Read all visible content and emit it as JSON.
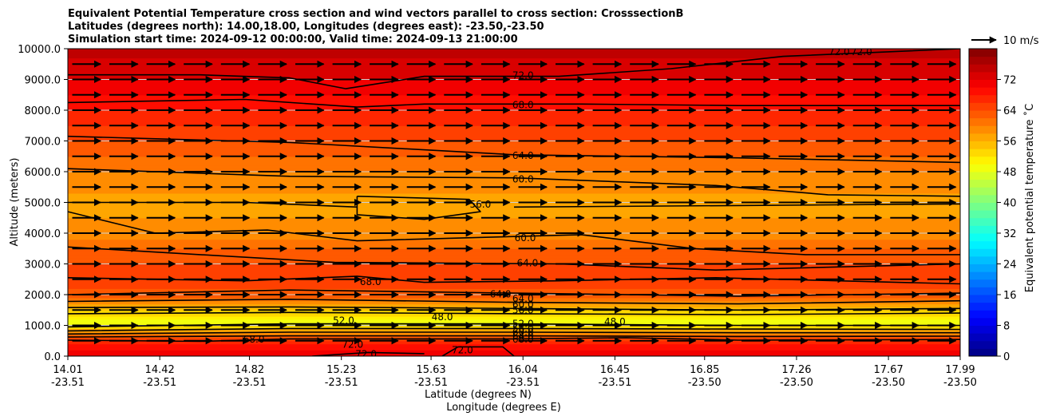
{
  "chart_data": {
    "type": "heatmap",
    "subtype": "filled contour cross section with quiver vectors",
    "title_lines": [
      "Equivalent Potential Temperature cross section and wind vectors parallel to cross section: CrosssectionB",
      "Latitudes (degrees north): 14.00,18.00, Longitudes (degrees east): -23.50,-23.50",
      "Simulation start time: 2024-09-12 00:00:00, Valid time: 2024-09-13 21:00:00"
    ],
    "xlabel_lat": "Latitude (degrees N)",
    "xlabel_lon": "Longitude (degrees E)",
    "ylabel": "Altitude (meters)",
    "colorbar_label": "Equivalent potential temperature ˚C",
    "xlim": [
      14.01,
      17.99
    ],
    "ylim": [
      0,
      10000
    ],
    "x_ticks": [
      {
        "value": 14.01,
        "lat": "14.01",
        "lon": "-23.51"
      },
      {
        "value": 14.42,
        "lat": "14.42",
        "lon": "-23.51"
      },
      {
        "value": 14.82,
        "lat": "14.82",
        "lon": "-23.51"
      },
      {
        "value": 15.23,
        "lat": "15.23",
        "lon": "-23.51"
      },
      {
        "value": 15.63,
        "lat": "15.63",
        "lon": "-23.51"
      },
      {
        "value": 16.04,
        "lat": "16.04",
        "lon": "-23.51"
      },
      {
        "value": 16.45,
        "lat": "16.45",
        "lon": "-23.51"
      },
      {
        "value": 16.85,
        "lat": "16.85",
        "lon": "-23.50"
      },
      {
        "value": 17.26,
        "lat": "17.26",
        "lon": "-23.50"
      },
      {
        "value": 17.67,
        "lat": "17.67",
        "lon": "-23.50"
      },
      {
        "value": 17.99,
        "lat": "17.99",
        "lon": "-23.50"
      }
    ],
    "y_ticks": [
      {
        "value": 0,
        "label": "0.0"
      },
      {
        "value": 1000,
        "label": "1000.0"
      },
      {
        "value": 2000,
        "label": "2000.0"
      },
      {
        "value": 3000,
        "label": "3000.0"
      },
      {
        "value": 4000,
        "label": "4000.0"
      },
      {
        "value": 5000,
        "label": "5000.0"
      },
      {
        "value": 6000,
        "label": "6000.0"
      },
      {
        "value": 7000,
        "label": "7000.0"
      },
      {
        "value": 8000,
        "label": "8000.0"
      },
      {
        "value": 9000,
        "label": "9000.0"
      },
      {
        "value": 10000,
        "label": "10000.0"
      }
    ],
    "colorbar": {
      "range": [
        0,
        80
      ],
      "tick_values": [
        0,
        8,
        16,
        24,
        32,
        40,
        48,
        56,
        64,
        72
      ],
      "tick_labels": [
        "0",
        "8",
        "16",
        "24",
        "32",
        "40",
        "48",
        "56",
        "64",
        "72"
      ]
    },
    "quiver_key": {
      "label": "10 m/s",
      "speed": 10
    },
    "theta_e_profile": [
      {
        "z": 0,
        "value": 71
      },
      {
        "z": 400,
        "value": 69
      },
      {
        "z": 800,
        "value": 58
      },
      {
        "z": 1000,
        "value": 50
      },
      {
        "z": 1200,
        "value": 49
      },
      {
        "z": 1400,
        "value": 53
      },
      {
        "z": 1700,
        "value": 58
      },
      {
        "z": 2000,
        "value": 63
      },
      {
        "z": 2500,
        "value": 66
      },
      {
        "z": 3000,
        "value": 64
      },
      {
        "z": 3500,
        "value": 62
      },
      {
        "z": 4000,
        "value": 59
      },
      {
        "z": 5000,
        "value": 57
      },
      {
        "z": 6000,
        "value": 60
      },
      {
        "z": 7000,
        "value": 64
      },
      {
        "z": 8000,
        "value": 68
      },
      {
        "z": 9000,
        "value": 72
      },
      {
        "z": 10000,
        "value": 75
      }
    ],
    "contour_labels": [
      {
        "text": "72.0",
        "x": 16.04,
        "z": 9130
      },
      {
        "text": "68.0",
        "x": 16.04,
        "z": 8170
      },
      {
        "text": "64.0",
        "x": 16.04,
        "z": 6520
      },
      {
        "text": "60.0",
        "x": 16.04,
        "z": 5750
      },
      {
        "text": "56.0",
        "x": 15.85,
        "z": 4930
      },
      {
        "text": "60.0",
        "x": 16.05,
        "z": 3850
      },
      {
        "text": "64.0",
        "x": 16.06,
        "z": 3030
      },
      {
        "text": "68.0",
        "x": 15.36,
        "z": 2420
      },
      {
        "text": "64.0",
        "x": 15.94,
        "z": 2010
      },
      {
        "text": "64.0",
        "x": 16.04,
        "z": 1870
      },
      {
        "text": "60.0",
        "x": 16.04,
        "z": 1680
      },
      {
        "text": "56.0",
        "x": 16.04,
        "z": 1500
      },
      {
        "text": "52.0",
        "x": 15.24,
        "z": 1150
      },
      {
        "text": "48.0",
        "x": 15.68,
        "z": 1270
      },
      {
        "text": "48.0",
        "x": 16.45,
        "z": 1120
      },
      {
        "text": "52.0",
        "x": 16.04,
        "z": 1050
      },
      {
        "text": "56.0",
        "x": 16.04,
        "z": 900
      },
      {
        "text": "60.0",
        "x": 16.04,
        "z": 780
      },
      {
        "text": "64.0",
        "x": 16.04,
        "z": 650
      },
      {
        "text": "68.0",
        "x": 16.04,
        "z": 550
      },
      {
        "text": "68.0",
        "x": 14.84,
        "z": 550
      },
      {
        "text": "72.0",
        "x": 15.28,
        "z": 380
      },
      {
        "text": "72.0",
        "x": 15.34,
        "z": 60
      },
      {
        "text": "72.0",
        "x": 15.77,
        "z": 200
      },
      {
        "text": "72.0",
        "x": 17.45,
        "z": 9900
      },
      {
        "text": "72.0",
        "x": 17.55,
        "z": 9900
      }
    ],
    "contour_lines": [
      {
        "level": 72,
        "points": [
          [
            14.01,
            9150
          ],
          [
            14.6,
            9150
          ],
          [
            15.0,
            9050
          ],
          [
            15.25,
            8700
          ],
          [
            15.6,
            9100
          ],
          [
            16.2,
            9100
          ],
          [
            16.7,
            9350
          ],
          [
            17.2,
            9750
          ],
          [
            17.99,
            10000
          ]
        ]
      },
      {
        "level": 68,
        "points": [
          [
            14.01,
            8250
          ],
          [
            14.8,
            8350
          ],
          [
            15.3,
            8100
          ],
          [
            15.6,
            8200
          ],
          [
            16.3,
            8200
          ],
          [
            17.0,
            8150
          ],
          [
            17.99,
            8150
          ]
        ]
      },
      {
        "level": 64,
        "points": [
          [
            14.01,
            7150
          ],
          [
            15.0,
            6950
          ],
          [
            16.0,
            6550
          ],
          [
            17.0,
            6450
          ],
          [
            17.99,
            6300
          ]
        ]
      },
      {
        "level": 60,
        "points": [
          [
            14.01,
            6100
          ],
          [
            15.0,
            5850
          ],
          [
            16.0,
            5800
          ],
          [
            16.9,
            5550
          ],
          [
            17.4,
            5250
          ],
          [
            17.99,
            5200
          ]
        ]
      },
      {
        "level": 56,
        "points": [
          [
            15.3,
            5200
          ],
          [
            15.55,
            5150
          ],
          [
            15.8,
            5100
          ],
          [
            15.85,
            4700
          ],
          [
            15.6,
            4450
          ],
          [
            15.3,
            4600
          ],
          [
            15.3,
            5200
          ]
        ]
      },
      {
        "level": 56,
        "points": [
          [
            14.01,
            5000
          ],
          [
            14.8,
            5000
          ],
          [
            15.3,
            4850
          ]
        ]
      },
      {
        "level": 56,
        "points": [
          [
            16.0,
            4850
          ],
          [
            17.0,
            4900
          ],
          [
            17.99,
            4950
          ]
        ]
      },
      {
        "level": 60,
        "points": [
          [
            14.01,
            4700
          ],
          [
            14.4,
            4000
          ],
          [
            14.9,
            4100
          ],
          [
            15.3,
            3750
          ],
          [
            16.3,
            3950
          ],
          [
            16.8,
            3500
          ],
          [
            17.3,
            3300
          ],
          [
            17.99,
            3300
          ]
        ]
      },
      {
        "level": 64,
        "points": [
          [
            14.01,
            3550
          ],
          [
            14.6,
            3300
          ],
          [
            15.2,
            3050
          ],
          [
            16.2,
            3000
          ],
          [
            16.9,
            2800
          ],
          [
            17.99,
            3000
          ]
        ]
      },
      {
        "level": 68,
        "points": [
          [
            14.01,
            2550
          ],
          [
            14.8,
            2450
          ],
          [
            15.3,
            2600
          ],
          [
            15.6,
            2400
          ],
          [
            16.2,
            2450
          ],
          [
            16.9,
            2550
          ],
          [
            17.99,
            2350
          ]
        ]
      },
      {
        "level": 64,
        "points": [
          [
            14.01,
            2000
          ],
          [
            15.0,
            2150
          ],
          [
            16.0,
            2050
          ],
          [
            17.0,
            1950
          ],
          [
            17.99,
            2050
          ]
        ]
      },
      {
        "level": 60,
        "points": [
          [
            14.01,
            1780
          ],
          [
            15.0,
            1850
          ],
          [
            16.0,
            1750
          ],
          [
            17.0,
            1700
          ],
          [
            17.99,
            1800
          ]
        ]
      },
      {
        "level": 56,
        "points": [
          [
            14.01,
            1580
          ],
          [
            15.0,
            1600
          ],
          [
            16.0,
            1550
          ],
          [
            17.0,
            1500
          ],
          [
            17.99,
            1550
          ]
        ]
      },
      {
        "level": 52,
        "points": [
          [
            14.01,
            1380
          ],
          [
            15.0,
            1420
          ],
          [
            16.0,
            1380
          ],
          [
            17.0,
            1350
          ],
          [
            17.99,
            1400
          ]
        ]
      },
      {
        "level": 52,
        "points": [
          [
            14.01,
            950
          ],
          [
            15.0,
            1050
          ],
          [
            16.0,
            1050
          ],
          [
            17.0,
            1000
          ],
          [
            17.99,
            1000
          ]
        ]
      },
      {
        "level": 56,
        "points": [
          [
            14.01,
            820
          ],
          [
            15.0,
            900
          ],
          [
            16.0,
            900
          ],
          [
            17.0,
            880
          ],
          [
            17.99,
            870
          ]
        ]
      },
      {
        "level": 60,
        "points": [
          [
            14.01,
            720
          ],
          [
            15.0,
            780
          ],
          [
            16.0,
            780
          ],
          [
            17.0,
            760
          ],
          [
            17.99,
            760
          ]
        ]
      },
      {
        "level": 64,
        "points": [
          [
            14.01,
            620
          ],
          [
            15.0,
            660
          ],
          [
            16.0,
            660
          ],
          [
            17.0,
            640
          ],
          [
            17.99,
            650
          ]
        ]
      },
      {
        "level": 68,
        "points": [
          [
            14.01,
            520
          ],
          [
            14.6,
            480
          ],
          [
            15.0,
            560
          ],
          [
            16.0,
            560
          ],
          [
            16.5,
            600
          ],
          [
            17.0,
            520
          ],
          [
            17.99,
            540
          ]
        ]
      },
      {
        "level": 72,
        "points": [
          [
            15.1,
            0
          ],
          [
            15.35,
            120
          ],
          [
            15.6,
            80
          ]
        ]
      },
      {
        "level": 72,
        "points": [
          [
            15.68,
            0
          ],
          [
            15.75,
            300
          ],
          [
            15.95,
            300
          ],
          [
            16.0,
            0
          ]
        ]
      }
    ]
  }
}
